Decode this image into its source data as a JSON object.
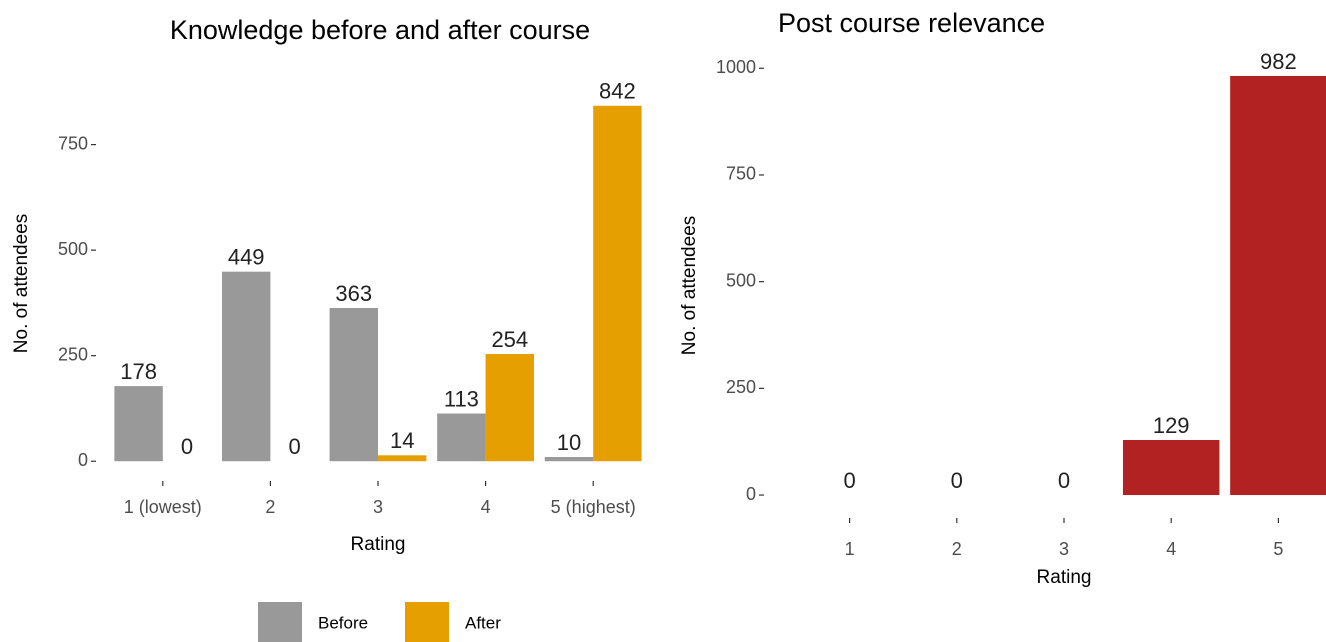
{
  "chart_data": [
    {
      "type": "grouped_bar",
      "title": "Knowledge before and after course",
      "x_label": "Rating",
      "y_label": "No. of attendees",
      "categories": [
        "1 (lowest)",
        "2",
        "3",
        "4",
        "5 (highest)"
      ],
      "series": [
        {
          "name": "Before",
          "color": "#999999",
          "values": [
            178,
            449,
            363,
            113,
            10
          ]
        },
        {
          "name": "After",
          "color": "#E69F00",
          "values": [
            0,
            0,
            14,
            254,
            842
          ]
        }
      ],
      "ylim": [
        -42.1,
        884.1
      ],
      "yticks": [
        0,
        250,
        500,
        750
      ],
      "grid": false,
      "legend": "bottom"
    },
    {
      "type": "bar",
      "title": "Post course relevance",
      "x_label": "Rating",
      "y_label": "No. of attendees",
      "categories": [
        "1",
        "2",
        "3",
        "4",
        "5"
      ],
      "values": [
        0,
        0,
        0,
        129,
        982
      ],
      "color": "#B22222",
      "ylim": [
        -49.1,
        1031.1
      ],
      "yticks": [
        0,
        250,
        500,
        750,
        1000
      ],
      "grid": false
    }
  ]
}
